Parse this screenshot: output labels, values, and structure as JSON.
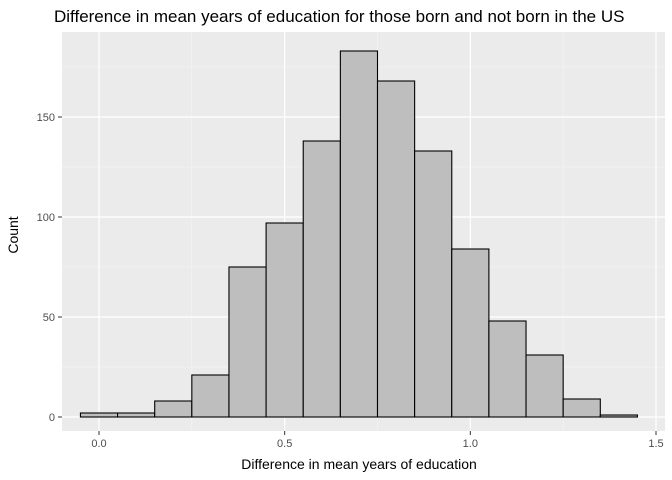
{
  "chart_data": {
    "type": "bar",
    "title": "Difference in mean years of education for those born and not born in the US",
    "xlabel": "Difference in mean years of education",
    "ylabel": "Count",
    "xlim": [
      -0.05,
      1.45
    ],
    "ylim": [
      0,
      185
    ],
    "bin_width": 0.1,
    "bins": [
      {
        "x0": -0.05,
        "x1": 0.05,
        "count": 2
      },
      {
        "x0": 0.05,
        "x1": 0.15,
        "count": 2
      },
      {
        "x0": 0.15,
        "x1": 0.25,
        "count": 8
      },
      {
        "x0": 0.25,
        "x1": 0.35,
        "count": 21
      },
      {
        "x0": 0.35,
        "x1": 0.45,
        "count": 75
      },
      {
        "x0": 0.45,
        "x1": 0.55,
        "count": 97
      },
      {
        "x0": 0.55,
        "x1": 0.65,
        "count": 138
      },
      {
        "x0": 0.65,
        "x1": 0.75,
        "count": 183
      },
      {
        "x0": 0.75,
        "x1": 0.85,
        "count": 168
      },
      {
        "x0": 0.85,
        "x1": 0.95,
        "count": 133
      },
      {
        "x0": 0.95,
        "x1": 1.05,
        "count": 84
      },
      {
        "x0": 1.05,
        "x1": 1.15,
        "count": 48
      },
      {
        "x0": 1.15,
        "x1": 1.25,
        "count": 31
      },
      {
        "x0": 1.25,
        "x1": 1.35,
        "count": 9
      },
      {
        "x0": 1.35,
        "x1": 1.45,
        "count": 1
      }
    ],
    "x_ticks": [
      0.0,
      0.5,
      1.0,
      1.5
    ],
    "x_tick_labels": [
      "0.0",
      "0.5",
      "1.0",
      "1.5"
    ],
    "y_ticks": [
      0,
      50,
      100,
      150
    ],
    "y_tick_labels": [
      "0",
      "50",
      "100",
      "150"
    ],
    "grid": true,
    "colors": {
      "panel_background": "#ebebeb",
      "grid_major": "#ffffff",
      "grid_minor": "#f5f5f5",
      "bar_fill": "#bebebe",
      "bar_stroke": "#000000"
    }
  }
}
